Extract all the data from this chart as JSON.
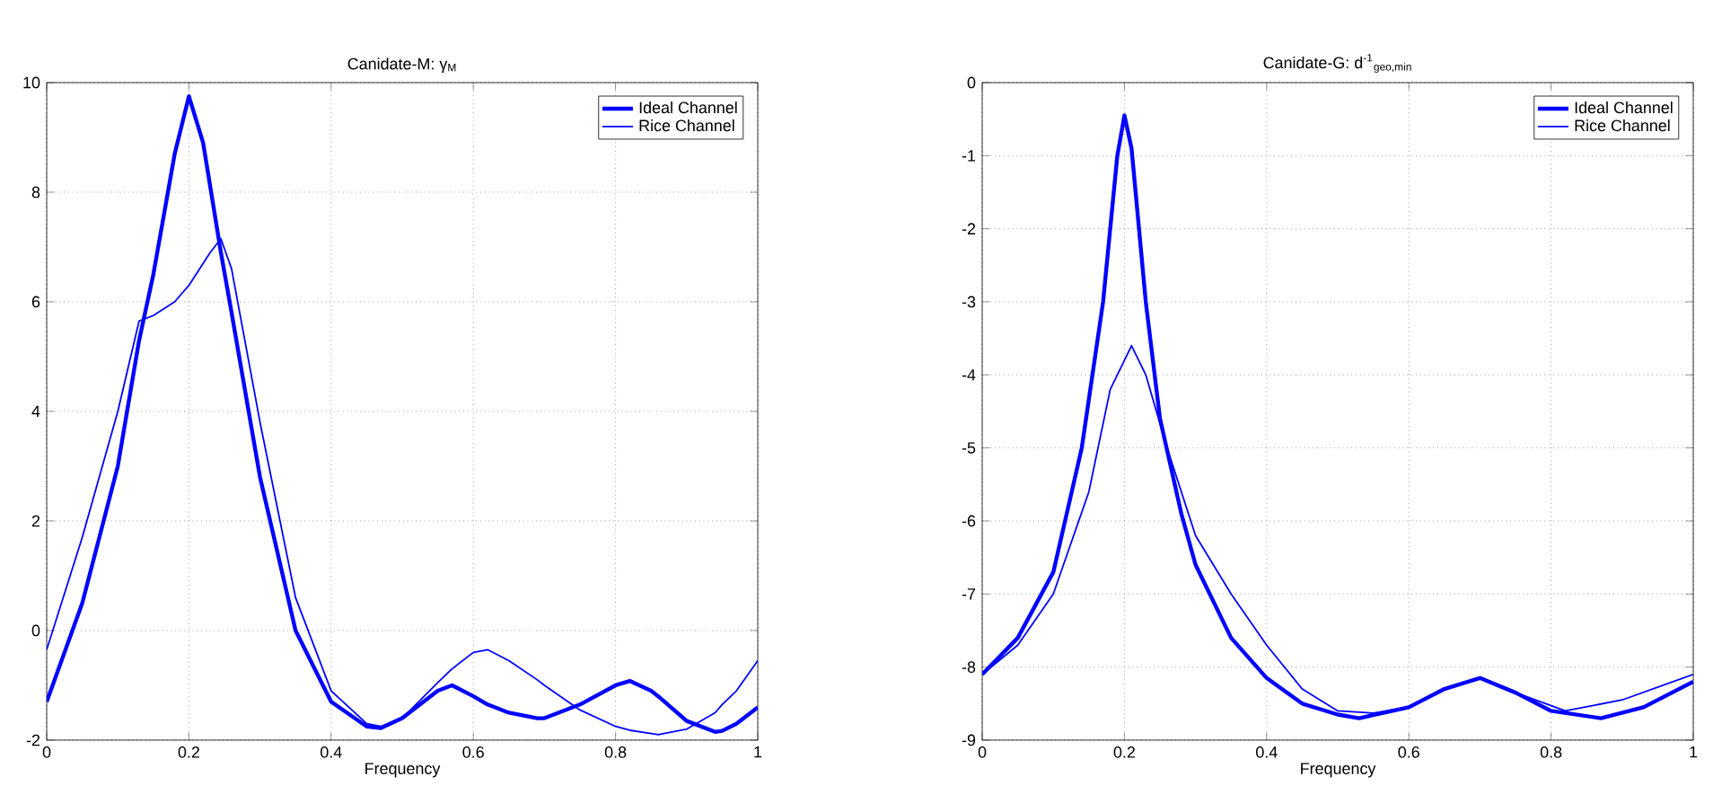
{
  "chart_data": [
    {
      "type": "line",
      "title": "Canidate-M: γ$_{M}$",
      "xlabel": "Frequency",
      "xlim": [
        0,
        1
      ],
      "ylim": [
        -2,
        10
      ],
      "xticks": [
        0,
        0.2,
        0.4,
        0.6,
        0.8,
        1
      ],
      "yticks": [
        -2,
        0,
        2,
        4,
        6,
        8,
        10
      ],
      "grid": true,
      "legend": "top right",
      "x": [
        0,
        0.05,
        0.1,
        0.13,
        0.15,
        0.18,
        0.2,
        0.22,
        0.23,
        0.245,
        0.26,
        0.3,
        0.35,
        0.4,
        0.45,
        0.47,
        0.5,
        0.55,
        0.57,
        0.6,
        0.62,
        0.65,
        0.69,
        0.7,
        0.75,
        0.8,
        0.82,
        0.85,
        0.86,
        0.9,
        0.94,
        0.95,
        0.97,
        1.0
      ],
      "series": [
        {
          "name": "Ideal Channel",
          "color": "#0000ff",
          "values": [
            -1.3,
            0.5,
            3.0,
            5.3,
            6.5,
            8.7,
            9.75,
            8.9,
            8.1,
            6.9,
            5.8,
            2.8,
            0.0,
            -1.3,
            -1.75,
            -1.78,
            -1.6,
            -1.1,
            -1.0,
            -1.2,
            -1.35,
            -1.5,
            -1.6,
            -1.6,
            -1.35,
            -1.0,
            -0.92,
            -1.1,
            -1.2,
            -1.65,
            -1.85,
            -1.83,
            -1.7,
            -1.4
          ]
        },
        {
          "name": "Rice Channel",
          "color": "#0000ff",
          "values": [
            -0.35,
            1.7,
            4.0,
            5.65,
            5.75,
            6.0,
            6.3,
            6.7,
            6.9,
            7.15,
            6.6,
            3.8,
            0.6,
            -1.1,
            -1.7,
            -1.75,
            -1.6,
            -0.95,
            -0.7,
            -0.4,
            -0.35,
            -0.55,
            -0.9,
            -1.0,
            -1.45,
            -1.75,
            -1.82,
            -1.88,
            -1.9,
            -1.8,
            -1.5,
            -1.35,
            -1.1,
            -0.55
          ]
        }
      ]
    },
    {
      "type": "line",
      "title": "Canidate-G: d$^{-1}$$_{geo,min}$",
      "xlabel": "Frequency",
      "xlim": [
        0,
        1
      ],
      "ylim": [
        -9,
        0
      ],
      "xticks": [
        0,
        0.2,
        0.4,
        0.6,
        0.8,
        1
      ],
      "yticks": [
        -9,
        -8,
        -7,
        -6,
        -5,
        -4,
        -3,
        -2,
        -1,
        0
      ],
      "grid": true,
      "legend": "top right",
      "series": [
        {
          "name": "Ideal Channel",
          "color": "#0000ff",
          "x": [
            0,
            0.05,
            0.1,
            0.14,
            0.17,
            0.19,
            0.2,
            0.21,
            0.23,
            0.25,
            0.28,
            0.3,
            0.35,
            0.4,
            0.45,
            0.5,
            0.53,
            0.6,
            0.65,
            0.7,
            0.75,
            0.8,
            0.87,
            0.93,
            1.0
          ],
          "values": [
            -8.1,
            -7.6,
            -6.7,
            -5.0,
            -3.0,
            -1.0,
            -0.45,
            -0.9,
            -3.0,
            -4.6,
            -5.9,
            -6.6,
            -7.6,
            -8.15,
            -8.5,
            -8.65,
            -8.7,
            -8.55,
            -8.3,
            -8.15,
            -8.35,
            -8.6,
            -8.7,
            -8.55,
            -8.2
          ]
        },
        {
          "name": "Rice Channel",
          "color": "#0000ff",
          "x": [
            0,
            0.05,
            0.1,
            0.15,
            0.18,
            0.21,
            0.23,
            0.26,
            0.3,
            0.35,
            0.4,
            0.45,
            0.5,
            0.55,
            0.6,
            0.65,
            0.7,
            0.75,
            0.82,
            0.9,
            1.0
          ],
          "values": [
            -8.1,
            -7.7,
            -7.0,
            -5.6,
            -4.2,
            -3.6,
            -4.0,
            -5.0,
            -6.2,
            -7.0,
            -7.7,
            -8.3,
            -8.6,
            -8.63,
            -8.55,
            -8.3,
            -8.15,
            -8.35,
            -8.6,
            -8.45,
            -8.1
          ]
        }
      ]
    }
  ]
}
